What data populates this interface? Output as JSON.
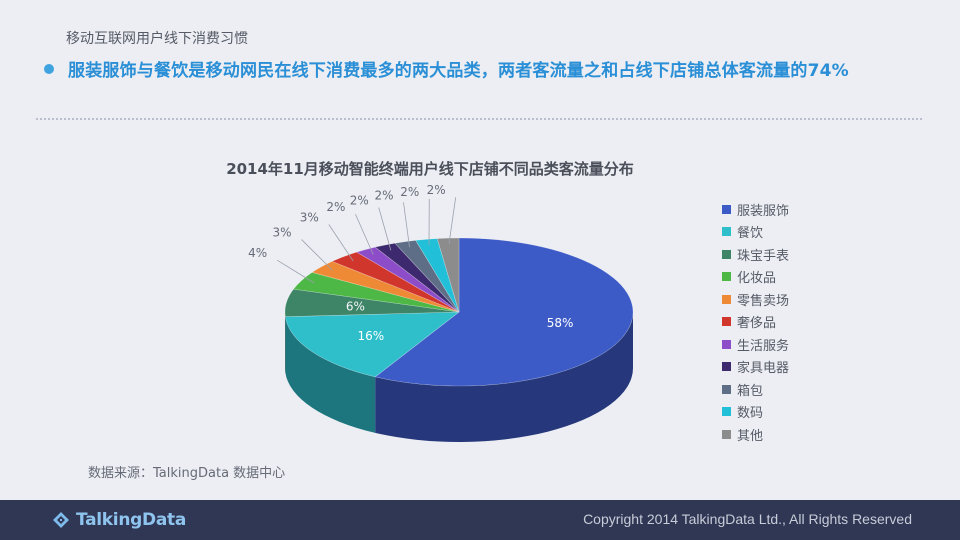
{
  "header": {
    "section_label": "移动互联网用户线下消费习惯",
    "headline": "服装服饰与餐饮是移动网民在线下消费最多的两大品类，两者客流量之和占线下店铺总体客流量的74%"
  },
  "chart_data": {
    "type": "pie",
    "title": "2014年11月移动智能终端用户线下店铺不同品类客流量分布",
    "style": "3d",
    "legend_position": "right",
    "categories": [
      "服装服饰",
      "餐饮",
      "珠宝手表",
      "化妆品",
      "零售卖场",
      "奢侈品",
      "生活服务",
      "家具电器",
      "箱包",
      "数码",
      "其他"
    ],
    "values": [
      58,
      16,
      6,
      4,
      3,
      3,
      2,
      2,
      2,
      2,
      2
    ],
    "labels": [
      "58%",
      "16%",
      "6%",
      "4%",
      "3%",
      "3%",
      "2%",
      "2%",
      "2%",
      "2%",
      "2%"
    ],
    "colors": [
      "#3D5BC7",
      "#2FBFCB",
      "#3E8467",
      "#4DB845",
      "#EE8A36",
      "#D0362C",
      "#8E4DC8",
      "#3D2A6E",
      "#5E6E86",
      "#21C0D8",
      "#8C8C8C"
    ]
  },
  "footer": {
    "source": "数据来源：TalkingData 数据中心",
    "logo_text": "TalkingData",
    "copyright": "Copyright 2014 TalkingData Ltd., All Rights Reserved"
  }
}
